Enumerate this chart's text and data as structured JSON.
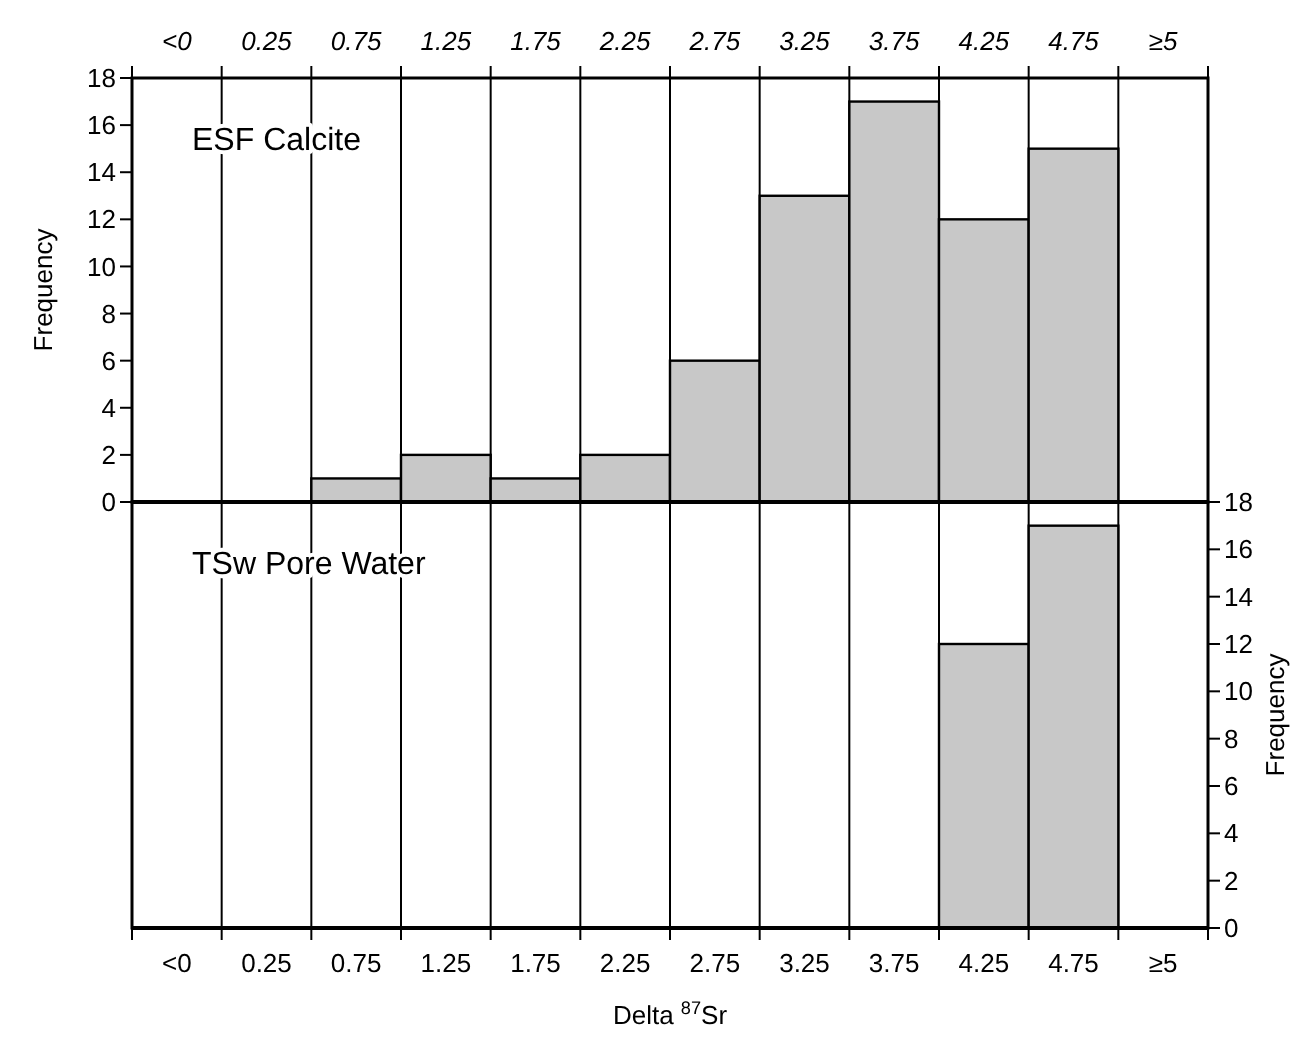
{
  "chart_data": [
    {
      "type": "bar",
      "categories": [
        "<0",
        "0.25",
        "0.75",
        "1.25",
        "1.75",
        "2.25",
        "2.75",
        "3.25",
        "3.75",
        "4.25",
        "4.75",
        "≥5"
      ],
      "series": [
        {
          "color": "#c8c8c8",
          "values": [
            0,
            0,
            1,
            2,
            1,
            2,
            6,
            13,
            17,
            12,
            15,
            0
          ]
        }
      ],
      "ylim": [
        0,
        18
      ],
      "yticks": [
        0,
        2,
        4,
        6,
        8,
        10,
        12,
        14,
        16,
        18
      ],
      "ylabel": "Frequency",
      "annotations": [
        "ESF Calcite"
      ],
      "grid": "x"
    },
    {
      "type": "bar",
      "categories": [
        "<0",
        "0.25",
        "0.75",
        "1.25",
        "1.75",
        "2.25",
        "2.75",
        "3.25",
        "3.75",
        "4.25",
        "4.75",
        "≥5"
      ],
      "series": [
        {
          "color": "#c8c8c8",
          "values": [
            0,
            0,
            0,
            0,
            0,
            0,
            0,
            0,
            0,
            12,
            17,
            0
          ],
          "axis": "y2"
        }
      ],
      "y2lim": [
        0,
        18
      ],
      "y2ticks": [
        0,
        2,
        4,
        6,
        8,
        10,
        12,
        14,
        16,
        18
      ],
      "y2label": "Frequency",
      "xlabel": "Delta $^{87}$Sr",
      "annotations": [
        "TSw Pore Water"
      ],
      "grid": "x"
    }
  ]
}
